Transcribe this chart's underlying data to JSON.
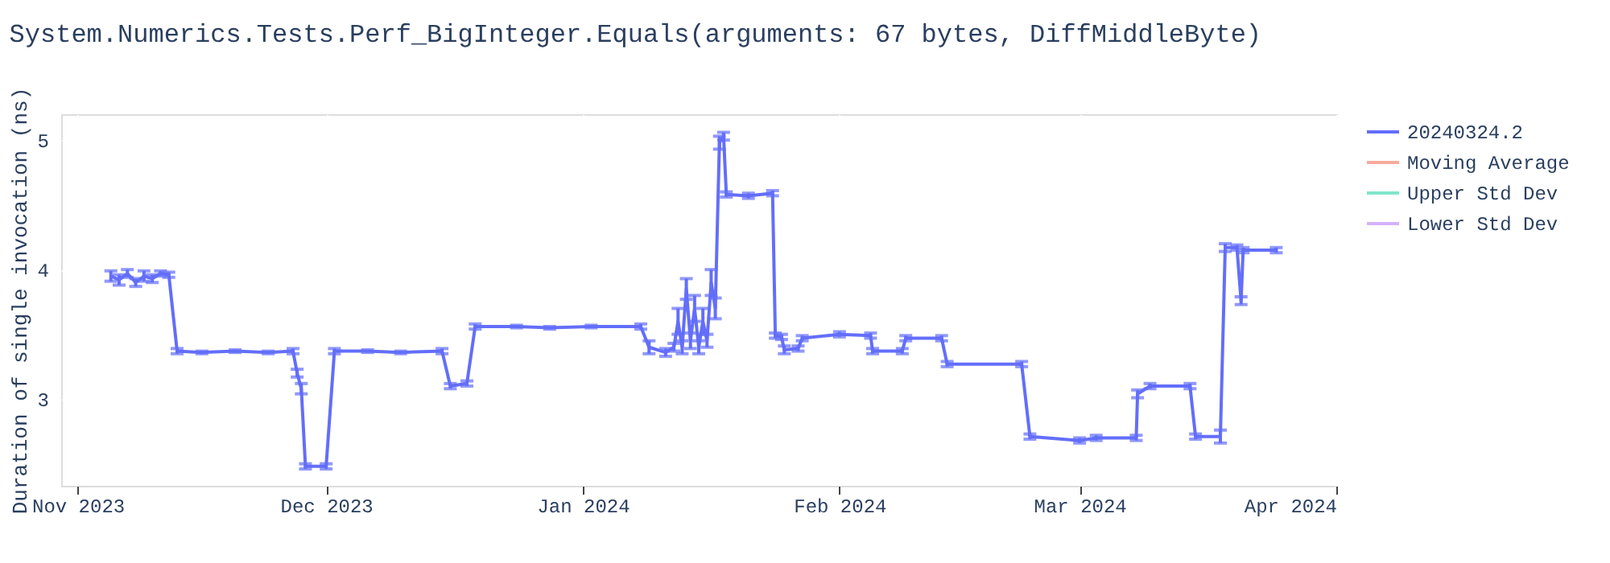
{
  "chart_data": {
    "type": "line",
    "title": "System.Numerics.Tests.Perf_BigInteger.Equals(arguments: 67 bytes, DiffMiddleByte)",
    "ylabel": "Duration of single invocation (ns)",
    "x": [
      "2023-11-05",
      "2023-11-06",
      "2023-11-07",
      "2023-11-08",
      "2023-11-09",
      "2023-11-10",
      "2023-11-11",
      "2023-11-12",
      "2023-11-13",
      "2023-11-16",
      "2023-11-20",
      "2023-11-24",
      "2023-11-27",
      "2023-11-27T12:00",
      "2023-11-28",
      "2023-11-28T12:00",
      "2023-12-01",
      "2023-12-02",
      "2023-12-06",
      "2023-12-10",
      "2023-12-15",
      "2023-12-16",
      "2023-12-18",
      "2023-12-19",
      "2023-12-24",
      "2023-12-28",
      "2024-01-02",
      "2024-01-08",
      "2024-01-09",
      "2024-01-11",
      "2024-01-12",
      "2024-01-12T12:00",
      "2024-01-13",
      "2024-01-13T12:00",
      "2024-01-14",
      "2024-01-14T12:00",
      "2024-01-15",
      "2024-01-15T12:00",
      "2024-01-16",
      "2024-01-16T12:00",
      "2024-01-17",
      "2024-01-17T12:00",
      "2024-01-18",
      "2024-01-18T08:00",
      "2024-01-21",
      "2024-01-23T22:00",
      "2024-01-24T06:00",
      "2024-01-25",
      "2024-01-25T08:00",
      "2024-01-27",
      "2024-01-27T12:00",
      "2024-02-01",
      "2024-02-04T18:00",
      "2024-02-05",
      "2024-02-08T14:00",
      "2024-02-09",
      "2024-02-13T08:00",
      "2024-02-14",
      "2024-02-23",
      "2024-02-24",
      "2024-03-01",
      "2024-03-03",
      "2024-03-07T20:00",
      "2024-03-08",
      "2024-03-09T12:00",
      "2024-03-14T08:00",
      "2024-03-15",
      "2024-03-18",
      "2024-03-18T14:00",
      "2024-03-20",
      "2024-03-20T12:00",
      "2024-03-20T18:00",
      "2024-03-24T18:00"
    ],
    "series": [
      {
        "name": "20240324.2",
        "color": "#636efa",
        "values": [
          3.95,
          3.92,
          3.97,
          3.9,
          3.95,
          3.93,
          3.97,
          3.96,
          3.37,
          3.36,
          3.37,
          3.36,
          3.37,
          3.2,
          3.08,
          2.48,
          2.48,
          3.37,
          3.37,
          3.36,
          3.37,
          3.1,
          3.12,
          3.56,
          3.56,
          3.55,
          3.56,
          3.56,
          3.4,
          3.36,
          3.4,
          3.6,
          3.4,
          3.85,
          3.45,
          3.7,
          3.4,
          3.6,
          3.45,
          3.9,
          3.7,
          4.98,
          5.03,
          4.58,
          4.57,
          4.59,
          3.49,
          3.48,
          3.38,
          3.39,
          3.47,
          3.5,
          3.49,
          3.37,
          3.37,
          3.47,
          3.47,
          3.27,
          3.27,
          2.71,
          2.68,
          2.7,
          2.7,
          3.04,
          3.1,
          3.1,
          2.71,
          2.71,
          4.17,
          4.17,
          3.76,
          4.15,
          4.15
        ],
        "errors": [
          0.04,
          0.04,
          0.03,
          0.03,
          0.04,
          0.03,
          0.02,
          0.02,
          0.02,
          0.01,
          0.01,
          0.01,
          0.02,
          0.03,
          0.04,
          0.02,
          0.02,
          0.02,
          0.01,
          0.01,
          0.02,
          0.02,
          0.02,
          0.02,
          0.01,
          0.01,
          0.01,
          0.02,
          0.05,
          0.03,
          0.03,
          0.1,
          0.05,
          0.08,
          0.06,
          0.1,
          0.05,
          0.1,
          0.05,
          0.1,
          0.08,
          0.05,
          0.03,
          0.02,
          0.02,
          0.02,
          0.02,
          0.02,
          0.03,
          0.02,
          0.02,
          0.02,
          0.02,
          0.02,
          0.02,
          0.02,
          0.02,
          0.02,
          0.02,
          0.02,
          0.02,
          0.02,
          0.02,
          0.03,
          0.02,
          0.02,
          0.02,
          0.05,
          0.03,
          0.02,
          0.03,
          0.02,
          0.02
        ]
      },
      {
        "name": "Moving Average",
        "color": "#f7aa9d",
        "values": [
          null,
          null,
          null,
          null,
          null,
          null,
          null,
          null,
          null,
          null,
          null,
          null,
          null,
          null,
          null,
          null,
          null,
          null,
          null,
          null,
          null,
          null,
          null,
          null,
          null,
          null,
          null,
          null,
          null,
          null,
          null,
          null,
          null,
          null,
          null,
          null,
          null,
          null,
          null,
          null,
          null,
          null,
          null,
          null,
          null,
          null,
          null,
          null,
          null,
          null,
          null,
          null,
          null,
          null,
          null,
          null,
          null,
          null,
          null,
          null,
          null,
          null,
          null,
          null,
          null,
          null,
          null,
          null,
          null,
          null,
          null,
          null,
          null
        ]
      },
      {
        "name": "Upper Std Dev",
        "color": "#80e5cb",
        "values": [
          null,
          null,
          null,
          null,
          null,
          null,
          null,
          null,
          null,
          null,
          null,
          null,
          null,
          null,
          null,
          null,
          null,
          null,
          null,
          null,
          null,
          null,
          null,
          null,
          null,
          null,
          null,
          null,
          null,
          null,
          null,
          null,
          null,
          null,
          null,
          null,
          null,
          null,
          null,
          null,
          null,
          null,
          null,
          null,
          null,
          null,
          null,
          null,
          null,
          null,
          null,
          null,
          null,
          null,
          null,
          null,
          null,
          null,
          null,
          null,
          null,
          null,
          null,
          null,
          null,
          null,
          null,
          null,
          null,
          null,
          null,
          null,
          null
        ]
      },
      {
        "name": "Lower Std Dev",
        "color": "#d5b1fc",
        "values": [
          null,
          null,
          null,
          null,
          null,
          null,
          null,
          null,
          null,
          null,
          null,
          null,
          null,
          null,
          null,
          null,
          null,
          null,
          null,
          null,
          null,
          null,
          null,
          null,
          null,
          null,
          null,
          null,
          null,
          null,
          null,
          null,
          null,
          null,
          null,
          null,
          null,
          null,
          null,
          null,
          null,
          null,
          null,
          null,
          null,
          null,
          null,
          null,
          null,
          null,
          null,
          null,
          null,
          null,
          null,
          null,
          null,
          null,
          null,
          null,
          null,
          null,
          null,
          null,
          null,
          null,
          null,
          null,
          null,
          null,
          null,
          null,
          null
        ]
      }
    ],
    "xlim": [
      "2023-10-30",
      "2024-04-01"
    ],
    "xticks": [
      {
        "value": "2023-11-01",
        "label": "Nov 2023"
      },
      {
        "value": "2023-12-01",
        "label": "Dec 2023"
      },
      {
        "value": "2024-01-01",
        "label": "Jan 2024"
      },
      {
        "value": "2024-02-01",
        "label": "Feb 2024"
      },
      {
        "value": "2024-03-01",
        "label": "Mar 2024"
      },
      {
        "value": "2024-04-01",
        "label": "Apr 2024"
      }
    ],
    "ylim": [
      2.33,
      5.2
    ],
    "yticks": [
      3,
      4,
      5
    ],
    "grid": true,
    "legend": "top right",
    "marker": "none",
    "line_style": "solid"
  }
}
